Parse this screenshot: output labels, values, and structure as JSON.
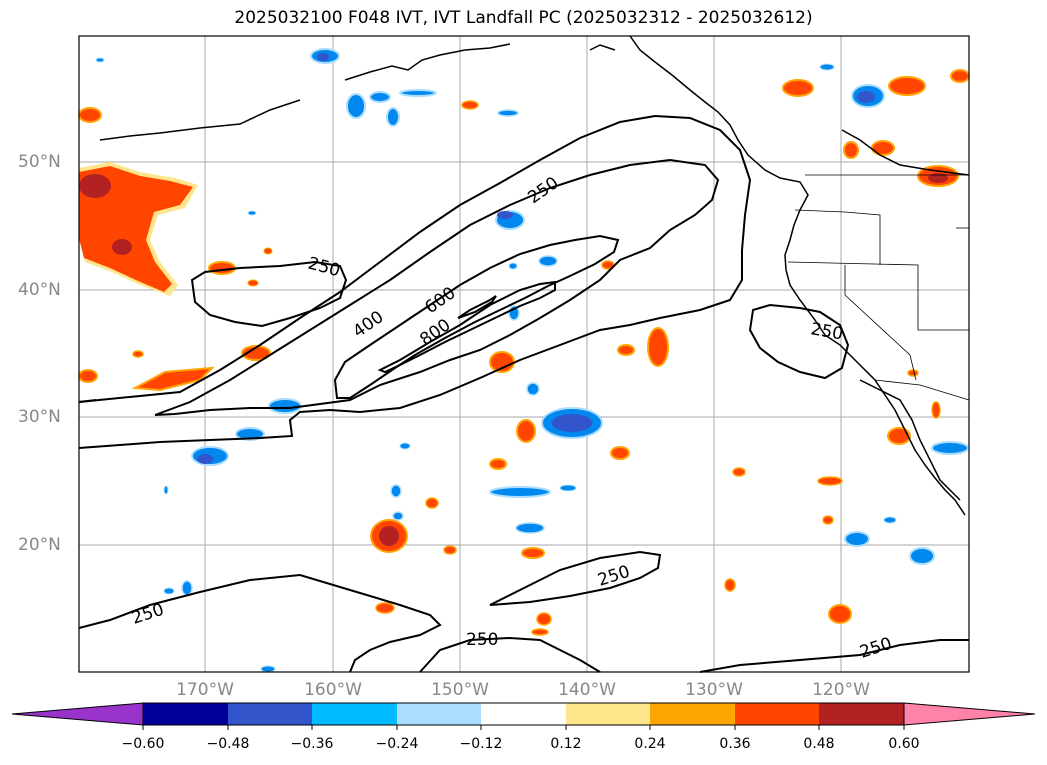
{
  "title": "2025032100 F048 IVT, IVT Landfall PC (2025032312 - 2025032612)",
  "latitude_labels": [
    "50°N",
    "40°N",
    "30°N",
    "20°N"
  ],
  "longitude_labels": [
    "170°W",
    "160°W",
    "150°W",
    "140°W",
    "130°W",
    "120°W"
  ],
  "contour_labels": [
    "250",
    "250",
    "250",
    "400",
    "600",
    "800",
    "250",
    "250",
    "250",
    "250"
  ],
  "colorbar": {
    "tick_labels": [
      "−0.60",
      "−0.48",
      "−0.36",
      "−0.24",
      "−0.12",
      "0.12",
      "0.24",
      "0.36",
      "0.48",
      "0.60"
    ],
    "colors": [
      "#9933cc",
      "#000099",
      "#3355cc",
      "#00bbff",
      "#aaddff",
      "#ffffff",
      "#ffe68c",
      "#ffa500",
      "#ff4500",
      "#b22222",
      "#ff82a8"
    ]
  },
  "colors": {
    "positive_core": "#b22222",
    "positive_main": "#ff4500",
    "positive_edge": "#ffa500",
    "positive_outer": "#ffe68c",
    "negative_core": "#3355cc",
    "negative_main": "#0088ee",
    "negative_edge": "#aaddff",
    "contour": "#000000",
    "gridline": "#aaaaaa"
  }
}
